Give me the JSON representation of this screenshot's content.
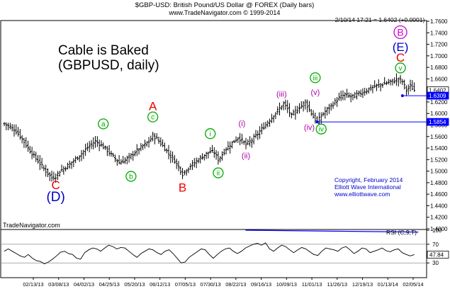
{
  "header": {
    "title": "$GBP-USD: British Pound/US Dollar @ FOREX (Daily bars)",
    "subtitle": "www.TradeNavigator.com © 1999-2014",
    "quote": "2/10/14 17:21 = 1.6402 (+0.0001)"
  },
  "annotation": {
    "line1": "Cable is Baked",
    "line2": "(GBPUSD, daily)"
  },
  "copyright": {
    "line1": "Copyright, February 2014",
    "line2": "Elliott Wave International",
    "line3": "www.elliottwave.com"
  },
  "watermark": "TradeNavigator.com",
  "rsi_label": "RSI (C,9,T)",
  "colors": {
    "bars": "#000000",
    "blue_line": "#0000ff",
    "wave_green": "#00aa00",
    "wave_purple": "#aa00aa",
    "wave_red": "#ee0000",
    "wave_blue": "#0000cc",
    "wave_magenta": "#cc00cc"
  },
  "chart_data": [
    {
      "type": "ohlc",
      "title": "$GBP-USD: British Pound/US Dollar @ FOREX (Daily bars)",
      "ylim": [
        1.4,
        1.76
      ],
      "y_ticks": [
        "1.7600",
        "1.7400",
        "1.7200",
        "1.7000",
        "1.6800",
        "1.6600",
        "1.6400",
        "1.6200",
        "1.6000",
        "1.5800",
        "1.5600",
        "1.5400",
        "1.5200",
        "1.5000",
        "1.4800",
        "1.4600",
        "1.4400",
        "1.4200",
        "1.4000"
      ],
      "x_ticks": [
        "02/13/13",
        "03/08/13",
        "04/02/13",
        "04/25/13",
        "05/20/13",
        "06/12/13",
        "07/05/13",
        "07/30/13",
        "08/22/13",
        "09/16/13",
        "10/09/13",
        "11/01/13",
        "11/26/13",
        "12/19/13",
        "01/13/14",
        "02/05/14"
      ],
      "price_tags": [
        {
          "label": "1.6402",
          "value": 1.6402
        },
        {
          "label": "1.6309",
          "value": 1.6309
        },
        {
          "label": "1.5854",
          "value": 1.5854
        }
      ],
      "close_path": [
        [
          0,
          1.582
        ],
        [
          3,
          1.577
        ],
        [
          6,
          1.569
        ],
        [
          9,
          1.556
        ],
        [
          12,
          1.54
        ],
        [
          15,
          1.526
        ],
        [
          18,
          1.513
        ],
        [
          21,
          1.5
        ],
        [
          24,
          1.488
        ],
        [
          26,
          1.491
        ],
        [
          28,
          1.5
        ],
        [
          31,
          1.507
        ],
        [
          34,
          1.515
        ],
        [
          37,
          1.524
        ],
        [
          40,
          1.534
        ],
        [
          43,
          1.544
        ],
        [
          46,
          1.552
        ],
        [
          49,
          1.545
        ],
        [
          52,
          1.536
        ],
        [
          55,
          1.525
        ],
        [
          58,
          1.515
        ],
        [
          61,
          1.519
        ],
        [
          64,
          1.527
        ],
        [
          67,
          1.536
        ],
        [
          70,
          1.544
        ],
        [
          73,
          1.551
        ],
        [
          75,
          1.562
        ],
        [
          77,
          1.556
        ],
        [
          80,
          1.544
        ],
        [
          83,
          1.53
        ],
        [
          86,
          1.518
        ],
        [
          88,
          1.507
        ],
        [
          90,
          1.495
        ],
        [
          92,
          1.503
        ],
        [
          95,
          1.512
        ],
        [
          98,
          1.52
        ],
        [
          101,
          1.528
        ],
        [
          104,
          1.534
        ],
        [
          106,
          1.532
        ],
        [
          108,
          1.52
        ],
        [
          110,
          1.529
        ],
        [
          112,
          1.539
        ],
        [
          115,
          1.549
        ],
        [
          118,
          1.558
        ],
        [
          120,
          1.553
        ],
        [
          122,
          1.546
        ],
        [
          125,
          1.554
        ],
        [
          128,
          1.565
        ],
        [
          131,
          1.577
        ],
        [
          134,
          1.589
        ],
        [
          137,
          1.601
        ],
        [
          140,
          1.613
        ],
        [
          141,
          1.617
        ],
        [
          143,
          1.608
        ],
        [
          145,
          1.596
        ],
        [
          147,
          1.604
        ],
        [
          150,
          1.614
        ],
        [
          152,
          1.62
        ],
        [
          154,
          1.607
        ],
        [
          156,
          1.594
        ],
        [
          158,
          1.585
        ],
        [
          160,
          1.596
        ],
        [
          163,
          1.607
        ],
        [
          166,
          1.617
        ],
        [
          169,
          1.627
        ],
        [
          172,
          1.633
        ],
        [
          175,
          1.629
        ],
        [
          178,
          1.633
        ],
        [
          181,
          1.637
        ],
        [
          184,
          1.642
        ],
        [
          187,
          1.647
        ],
        [
          190,
          1.65
        ],
        [
          193,
          1.653
        ],
        [
          196,
          1.656
        ],
        [
          199,
          1.66
        ],
        [
          201,
          1.655
        ],
        [
          203,
          1.64
        ],
        [
          205,
          1.648
        ],
        [
          207,
          1.6402
        ]
      ],
      "horizontal_lines": [
        {
          "from": 158,
          "value": 1.5854
        },
        {
          "from": 201,
          "value": 1.6309
        }
      ],
      "wave_labels": [
        {
          "text": "C",
          "i": 26,
          "value": 1.476,
          "style": "red",
          "size": 17
        },
        {
          "text": "(D)",
          "i": 26,
          "value": 1.456,
          "style": "blue",
          "size": 19
        },
        {
          "text": "a",
          "i": 50,
          "value": 1.582,
          "style": "green-circle"
        },
        {
          "text": "b",
          "i": 64,
          "value": 1.491,
          "style": "green-circle"
        },
        {
          "text": "c",
          "i": 75,
          "value": 1.594,
          "style": "green-circle"
        },
        {
          "text": "A",
          "i": 75,
          "value": 1.613,
          "style": "red",
          "size": 17
        },
        {
          "text": "B",
          "i": 90,
          "value": 1.472,
          "style": "red",
          "size": 17
        },
        {
          "text": "i",
          "i": 104,
          "value": 1.565,
          "style": "green-circle"
        },
        {
          "text": "ii",
          "i": 108,
          "value": 1.497,
          "style": "green-circle"
        },
        {
          "text": "(i)",
          "i": 120,
          "value": 1.583,
          "style": "purple"
        },
        {
          "text": "(ii)",
          "i": 122,
          "value": 1.527,
          "style": "purple"
        },
        {
          "text": "(iii)",
          "i": 140,
          "value": 1.634,
          "style": "purple"
        },
        {
          "text": "(iv)",
          "i": 154,
          "value": 1.576,
          "style": "purple"
        },
        {
          "text": "iii",
          "i": 157,
          "value": 1.662,
          "style": "green-circle"
        },
        {
          "text": "(v)",
          "i": 157,
          "value": 1.637,
          "style": "purple"
        },
        {
          "text": "iv",
          "i": 160,
          "value": 1.573,
          "style": "green-circle"
        },
        {
          "text": "v",
          "i": 200,
          "value": 1.679,
          "style": "green-circle"
        },
        {
          "text": "C",
          "i": 200,
          "value": 1.697,
          "style": "red",
          "size": 17
        },
        {
          "text": "(E)",
          "i": 200,
          "value": 1.716,
          "style": "blue",
          "size": 17
        },
        {
          "text": "B",
          "i": 200,
          "value": 1.741,
          "style": "magenta-circle"
        }
      ]
    },
    {
      "type": "line",
      "title": "RSI (C,9,T)",
      "ylim": [
        0,
        100
      ],
      "y_ticks": [
        "100",
        "70",
        "30"
      ],
      "last_value_label": "47.84",
      "last_value": 47.84,
      "series": [
        {
          "values": [
            55,
            60,
            55,
            50,
            45,
            42,
            48,
            40,
            35,
            33,
            28,
            32,
            38,
            45,
            53,
            55,
            50,
            48,
            40,
            38,
            52,
            58,
            62,
            60,
            55,
            62,
            68,
            65,
            60,
            63,
            62,
            55,
            48,
            42,
            50,
            55,
            60,
            58,
            52,
            48,
            55,
            58,
            50,
            40,
            30,
            32,
            42,
            48,
            54,
            60,
            58,
            48,
            40,
            48,
            55,
            60,
            62,
            55,
            50,
            55,
            62,
            66,
            70,
            72,
            68,
            73,
            60,
            55,
            62,
            68,
            65,
            58,
            52,
            58,
            63,
            60,
            54,
            48,
            46,
            55,
            62,
            60,
            58,
            55,
            62,
            65,
            58,
            50,
            55,
            62,
            60,
            52,
            55,
            58,
            62,
            56,
            54,
            58,
            60,
            52,
            48,
            45,
            47.84
          ]
        }
      ],
      "trend_line": {
        "from": [
          60,
          100
        ],
        "to": [
          103,
          96
        ]
      }
    }
  ]
}
